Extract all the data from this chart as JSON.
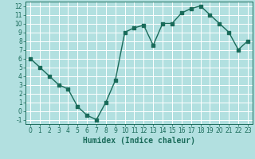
{
  "x": [
    0,
    1,
    2,
    3,
    4,
    5,
    6,
    7,
    8,
    9,
    10,
    11,
    12,
    13,
    14,
    15,
    16,
    17,
    18,
    19,
    20,
    21,
    22,
    23
  ],
  "y": [
    6,
    5,
    4,
    3,
    2.5,
    0.5,
    -0.5,
    -1,
    1,
    3.5,
    9,
    9.5,
    9.8,
    7.5,
    10,
    10,
    11.2,
    11.7,
    12,
    11,
    10,
    9,
    7,
    8
  ],
  "line_color": "#1a6b5a",
  "marker": "s",
  "markersize": 2.5,
  "bg_color": "#b2e0e0",
  "grid_color": "#ffffff",
  "xlabel": "Humidex (Indice chaleur)",
  "xlim": [
    -0.5,
    23.5
  ],
  "ylim": [
    -1.5,
    12.5
  ],
  "yticks": [
    -1,
    0,
    1,
    2,
    3,
    4,
    5,
    6,
    7,
    8,
    9,
    10,
    11,
    12
  ],
  "xticks": [
    0,
    1,
    2,
    3,
    4,
    5,
    6,
    7,
    8,
    9,
    10,
    11,
    12,
    13,
    14,
    15,
    16,
    17,
    18,
    19,
    20,
    21,
    22,
    23
  ],
  "tick_fontsize": 5.5,
  "xlabel_fontsize": 7.0,
  "linewidth": 1.0
}
